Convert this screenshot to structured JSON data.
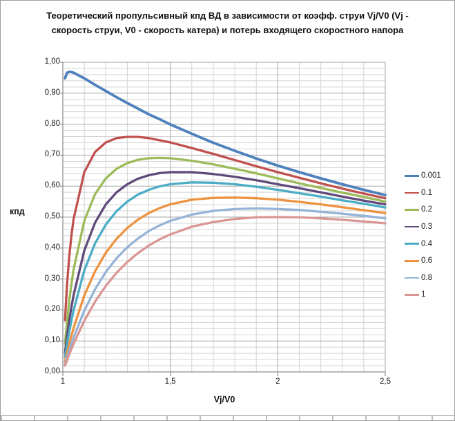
{
  "title": "Теоретический пропульсивный кпд ВД в зависимости от коэфф. струи Vj/V0 (Vj - скорость струи, V0 - скорость катера) и потерь входящего скоростного напора",
  "colors": {
    "grid_minor": "#d3d3d3",
    "grid_major": "#a6a6a6",
    "axis": "#8a8a8a",
    "title_text": "#111111",
    "tick_text": "#1a1a1a"
  },
  "chart_data": {
    "type": "line",
    "title": "Теоретический пропульсивный кпд ВД в зависимости от коэфф. струи Vj/V0 (Vj - скорость струи, V0 - скорость катера) и потерь входящего скоростного напора",
    "xlabel": "Vj/V0",
    "ylabel": "кпд",
    "xlim": [
      1,
      2.5
    ],
    "ylim": [
      0,
      1
    ],
    "grid": true,
    "x_minor_step": 0.1,
    "y_minor_step": 0.02,
    "legend_position": "right",
    "x_ticks": [
      {
        "v": 1.0,
        "label": "1"
      },
      {
        "v": 1.5,
        "label": "1,5"
      },
      {
        "v": 2.0,
        "label": "2"
      },
      {
        "v": 2.5,
        "label": "2,5"
      }
    ],
    "y_ticks": [
      {
        "v": 0.0,
        "label": "0,00"
      },
      {
        "v": 0.1,
        "label": "0,10"
      },
      {
        "v": 0.2,
        "label": "0,20"
      },
      {
        "v": 0.3,
        "label": "0,30"
      },
      {
        "v": 0.4,
        "label": "0,40"
      },
      {
        "v": 0.5,
        "label": "0,50"
      },
      {
        "v": 0.6,
        "label": "0,60"
      },
      {
        "v": 0.7,
        "label": "0,70"
      },
      {
        "v": 0.8,
        "label": "0,80"
      },
      {
        "v": 0.9,
        "label": "0,90"
      },
      {
        "v": 1.0,
        "label": "1,00"
      }
    ],
    "x": [
      1.01,
      1.02,
      1.03,
      1.04,
      1.05,
      1.1,
      1.15,
      1.2,
      1.25,
      1.3,
      1.35,
      1.4,
      1.45,
      1.5,
      1.6,
      1.7,
      1.8,
      1.9,
      2.0,
      2.1,
      2.2,
      2.3,
      2.4,
      2.5
    ],
    "series": [
      {
        "name": "0.001",
        "color": "#4F81BD",
        "width": 3.8,
        "values": [
          0.948,
          0.966,
          0.969,
          0.968,
          0.966,
          0.948,
          0.927,
          0.907,
          0.887,
          0.868,
          0.85,
          0.832,
          0.816,
          0.799,
          0.769,
          0.74,
          0.714,
          0.689,
          0.666,
          0.645,
          0.625,
          0.606,
          0.588,
          0.571
        ]
      },
      {
        "name": "0.1",
        "color": "#C0504D",
        "width": 3.3,
        "values": [
          0.167,
          0.285,
          0.373,
          0.441,
          0.494,
          0.645,
          0.71,
          0.741,
          0.755,
          0.759,
          0.759,
          0.755,
          0.748,
          0.741,
          0.723,
          0.704,
          0.684,
          0.664,
          0.645,
          0.627,
          0.609,
          0.592,
          0.576,
          0.561
        ]
      },
      {
        "name": "0.2",
        "color": "#9BBB59",
        "width": 3.3,
        "values": [
          0.091,
          0.166,
          0.23,
          0.284,
          0.331,
          0.488,
          0.574,
          0.625,
          0.656,
          0.674,
          0.685,
          0.69,
          0.691,
          0.69,
          0.682,
          0.67,
          0.656,
          0.641,
          0.625,
          0.609,
          0.594,
          0.579,
          0.565,
          0.55
        ]
      },
      {
        "name": "0.3",
        "color": "#604A7B",
        "width": 3.3,
        "values": [
          0.062,
          0.118,
          0.166,
          0.21,
          0.248,
          0.392,
          0.482,
          0.541,
          0.58,
          0.606,
          0.624,
          0.635,
          0.642,
          0.645,
          0.645,
          0.639,
          0.63,
          0.619,
          0.606,
          0.593,
          0.58,
          0.566,
          0.553,
          0.541
        ]
      },
      {
        "name": "0.4",
        "color": "#4BACC6",
        "width": 3.3,
        "values": [
          0.048,
          0.091,
          0.13,
          0.166,
          0.199,
          0.328,
          0.415,
          0.476,
          0.519,
          0.55,
          0.573,
          0.588,
          0.599,
          0.606,
          0.612,
          0.611,
          0.606,
          0.598,
          0.588,
          0.577,
          0.566,
          0.554,
          0.543,
          0.531
        ]
      },
      {
        "name": "0.6",
        "color": "#ED9340",
        "width": 3.3,
        "values": [
          0.032,
          0.062,
          0.091,
          0.117,
          0.142,
          0.247,
          0.325,
          0.385,
          0.43,
          0.465,
          0.492,
          0.513,
          0.529,
          0.541,
          0.556,
          0.562,
          0.563,
          0.561,
          0.556,
          0.549,
          0.541,
          0.532,
          0.522,
          0.513
        ]
      },
      {
        "name": "0.8",
        "color": "#95B3D7",
        "width": 3.3,
        "values": [
          0.024,
          0.048,
          0.07,
          0.091,
          0.111,
          0.198,
          0.267,
          0.323,
          0.367,
          0.403,
          0.431,
          0.455,
          0.473,
          0.488,
          0.508,
          0.52,
          0.526,
          0.528,
          0.526,
          0.523,
          0.517,
          0.511,
          0.504,
          0.496
        ]
      },
      {
        "name": "1",
        "color": "#D99694",
        "width": 3.3,
        "values": [
          0.02,
          0.038,
          0.057,
          0.074,
          0.091,
          0.165,
          0.227,
          0.278,
          0.32,
          0.355,
          0.384,
          0.408,
          0.428,
          0.444,
          0.469,
          0.484,
          0.494,
          0.499,
          0.5,
          0.499,
          0.496,
          0.491,
          0.486,
          0.48
        ]
      }
    ]
  }
}
